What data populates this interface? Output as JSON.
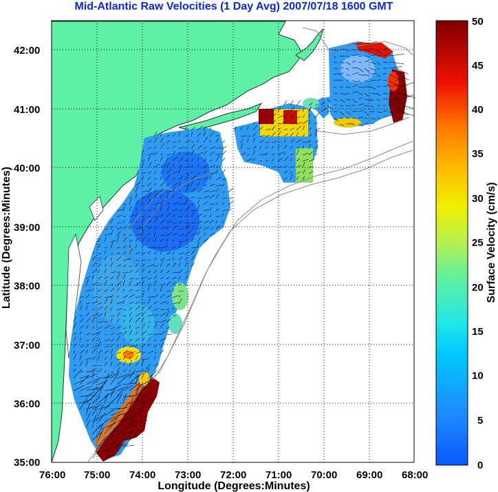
{
  "title": "Mid-Atlantic Raw Velocities (1 Day Avg) 2007/07/18 1600 GMT",
  "map": {
    "xlabel": "Longitude (Degrees:Minutes)",
    "ylabel": "Latitude (Degrees:Minutes)",
    "x_ticks": [
      "76:00",
      "75:00",
      "74:00",
      "73:00",
      "72:00",
      "71:00",
      "70:00",
      "69:00",
      "68:00"
    ],
    "y_ticks": [
      "42:00",
      "41:00",
      "40:00",
      "39:00",
      "38:00",
      "37:00",
      "36:00",
      "35:00"
    ],
    "lon_range": [
      -76,
      -68
    ],
    "lat_range": [
      35,
      42.5
    ],
    "grid": "dotted",
    "land_color": "#5ff0a8"
  },
  "colorbar": {
    "label": "Surface Velocity (cm/s)",
    "ticks": [
      "50",
      "45",
      "40",
      "35",
      "30",
      "25",
      "20",
      "15",
      "10",
      "5",
      "0"
    ],
    "range": [
      0,
      50
    ],
    "colormap": "jet"
  }
}
